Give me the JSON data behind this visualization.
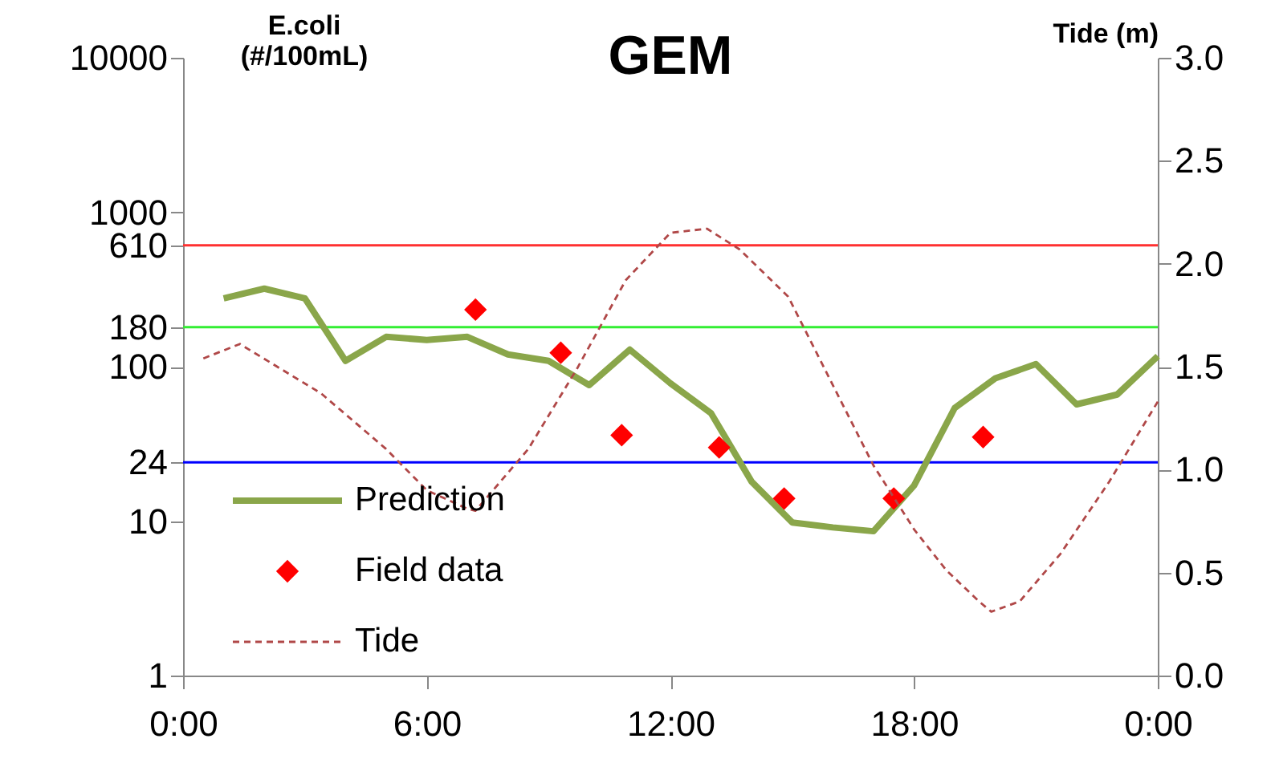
{
  "chart_data": {
    "type": "line",
    "title": "GEM",
    "ylabel": "E.coli (#/100mL)",
    "y2label": "Tide (m)",
    "xlim": [
      0,
      24
    ],
    "xticks": [
      {
        "value": 0,
        "label": "0:00"
      },
      {
        "value": 6,
        "label": "6:00"
      },
      {
        "value": 12,
        "label": "12:00"
      },
      {
        "value": 18,
        "label": "18:00"
      },
      {
        "value": 24,
        "label": "0:00"
      }
    ],
    "ylim": [
      1,
      10000
    ],
    "yticks": [
      1,
      10,
      24,
      100,
      180,
      610,
      1000,
      10000
    ],
    "log": "y",
    "y2lim": [
      0,
      3
    ],
    "y2ticks": [
      {
        "value": 0,
        "label": "0.0"
      },
      {
        "value": 0.5,
        "label": "0.5"
      },
      {
        "value": 1,
        "label": "1.0"
      },
      {
        "value": 1.5,
        "label": "1.5"
      },
      {
        "value": 2,
        "label": "2.0"
      },
      {
        "value": 2.5,
        "label": "2.5"
      },
      {
        "value": 3,
        "label": "3.0"
      }
    ],
    "grid": false,
    "legend": "bottom left",
    "series": [
      {
        "name": "Prediction",
        "type": "line",
        "color": "#8aa64a",
        "line_style": "solid",
        "marker": "none",
        "x": [
          1,
          2,
          3,
          4,
          5,
          6,
          7,
          8,
          9,
          10,
          11,
          12,
          13,
          14,
          15,
          16,
          17,
          18,
          19,
          20,
          21,
          22,
          23,
          24
        ],
        "values": [
          277,
          320,
          277,
          109,
          156,
          149,
          156,
          120,
          109,
          76,
          129,
          78,
          50,
          18,
          9.8,
          9.1,
          8.6,
          17,
          54,
          84,
          104,
          57,
          66,
          117
        ]
      },
      {
        "name": "Field data",
        "type": "scatter",
        "color": "#ff0000",
        "marker": "diamond",
        "x": [
          7.2,
          9.3,
          10.8,
          13.2,
          14.8,
          17.5,
          19.7
        ],
        "values": [
          234,
          123,
          36,
          30,
          14,
          14,
          35
        ]
      },
      {
        "name": "Tide",
        "type": "line",
        "axis": "y2",
        "color": "#b04848",
        "line_style": "dashed",
        "marker": "none",
        "x": [
          0.5,
          1.4,
          3.4,
          5,
          6,
          7,
          7.2,
          8.5,
          9.7,
          10.9,
          12,
          12.9,
          13.7,
          14.9,
          16,
          17,
          18,
          18.8,
          19.6,
          19.9,
          20.6,
          21.6,
          22.8,
          24
        ],
        "values": [
          1.54,
          1.61,
          1.37,
          1.1,
          0.9,
          0.81,
          0.8,
          1.1,
          1.49,
          1.92,
          2.15,
          2.17,
          2.07,
          1.84,
          1.41,
          1.02,
          0.71,
          0.51,
          0.36,
          0.31,
          0.36,
          0.59,
          0.94,
          1.33
        ]
      }
    ],
    "ref_lines": [
      {
        "axis": "y",
        "value": 610,
        "color": "#ff3030"
      },
      {
        "axis": "y",
        "value": 180,
        "color": "#33ee33"
      },
      {
        "axis": "y",
        "value": 24,
        "color": "#0000ff"
      }
    ]
  }
}
